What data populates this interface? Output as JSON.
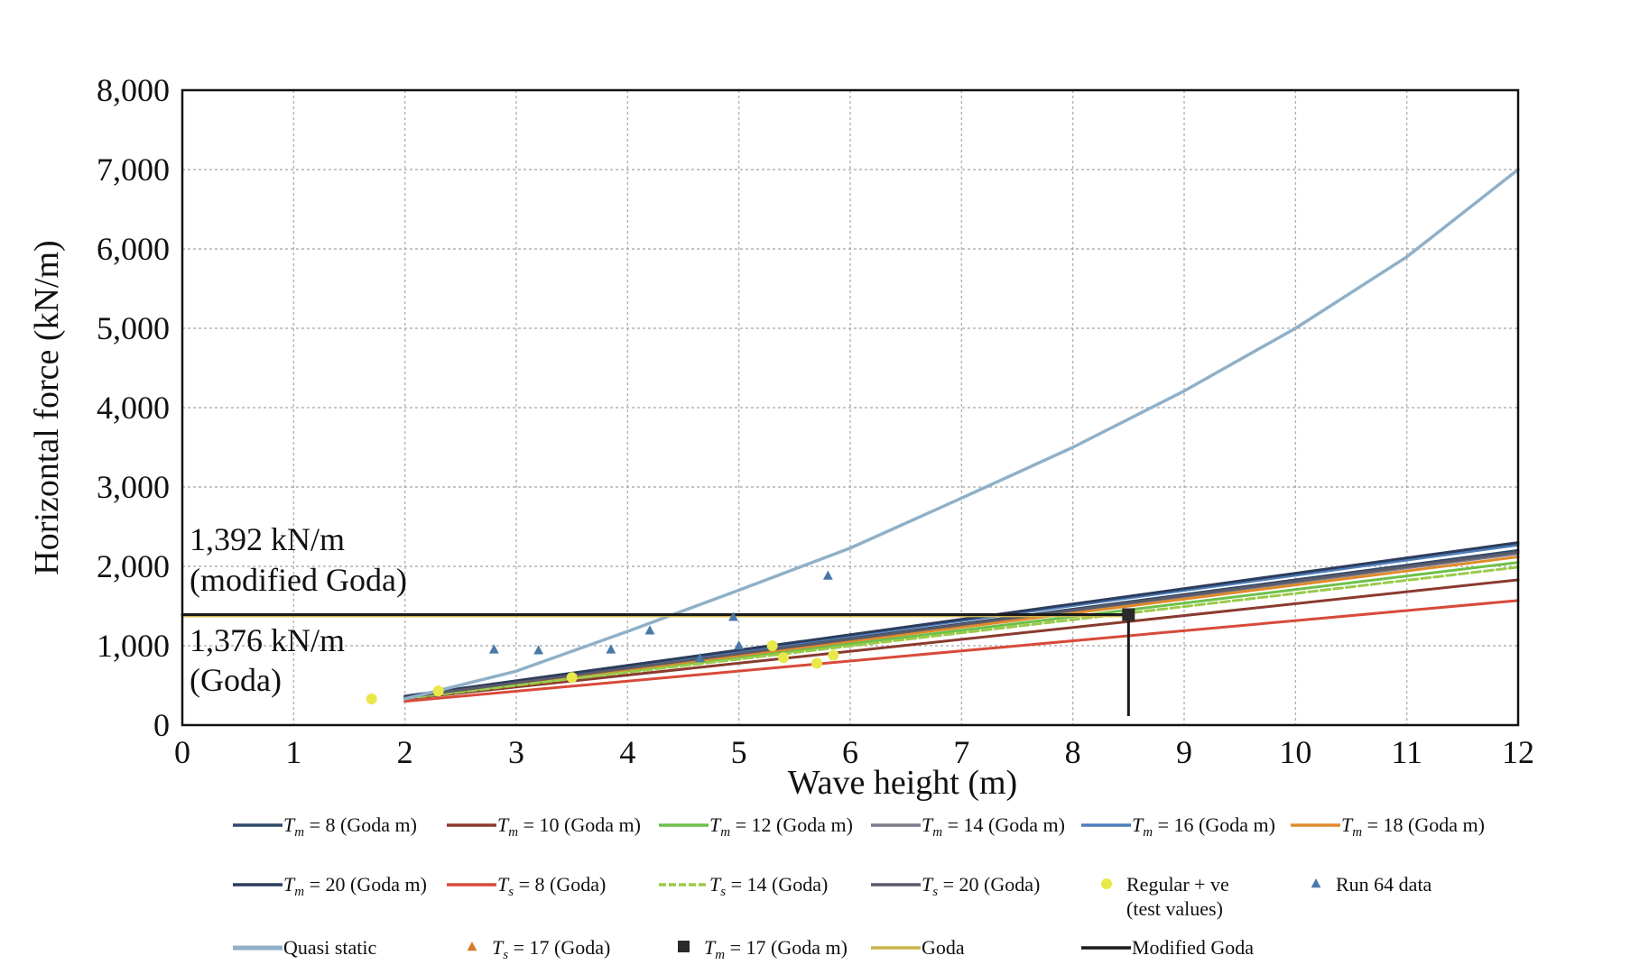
{
  "chart_data": {
    "type": "line",
    "xlabel": "Wave height (m)",
    "ylabel": "Horizontal force (kN/m)",
    "xlim": [
      0,
      12
    ],
    "ylim": [
      0,
      8000
    ],
    "x_ticks": [
      "0",
      "1",
      "2",
      "3",
      "4",
      "5",
      "6",
      "7",
      "8",
      "9",
      "10",
      "11",
      "12"
    ],
    "y_ticks": [
      "0",
      "1,000",
      "2,000",
      "3,000",
      "4,000",
      "5,000",
      "6,000",
      "7,000",
      "8,000"
    ],
    "grid": true,
    "legend_position": "bottom",
    "colors": {
      "tm8": "#2f4868",
      "tm10": "#8a3a2e",
      "tm12": "#6cc04a",
      "tm14": "#7a7a8a",
      "tm16": "#4d7cb8",
      "tm18": "#e08a2a",
      "tm20": "#2c3c5c",
      "ts8": "#d84a3a",
      "ts14": "#9acb4a",
      "ts20": "#5a5a6a",
      "quasi": "#8fb0c8",
      "goda": "#c8b24a",
      "modgoda": "#1a1a1a",
      "regular": "#e8e84a",
      "run64": "#4a78a8",
      "ts17": "#d87a2a",
      "tm17": "#2a2a2a"
    },
    "series": [
      {
        "key": "tm8",
        "name": "T_m = 8 (Goda m)",
        "x": [
          2,
          12
        ],
        "y": [
          350,
          2200
        ]
      },
      {
        "key": "tm10",
        "name": "T_m = 10 (Goda m)",
        "x": [
          2,
          12
        ],
        "y": [
          330,
          1830
        ]
      },
      {
        "key": "tm12",
        "name": "T_m = 12 (Goda m)",
        "x": [
          2,
          12
        ],
        "y": [
          340,
          2050
        ]
      },
      {
        "key": "tm14",
        "name": "T_m = 14 (Goda m)",
        "x": [
          2,
          12
        ],
        "y": [
          355,
          2160
        ]
      },
      {
        "key": "tm16",
        "name": "T_m = 16 (Goda m)",
        "x": [
          2,
          12
        ],
        "y": [
          360,
          2270
        ]
      },
      {
        "key": "tm18",
        "name": "T_m = 18 (Goda m)",
        "x": [
          2,
          12
        ],
        "y": [
          345,
          2120
        ]
      },
      {
        "key": "tm20",
        "name": "T_m = 20 (Goda m)",
        "x": [
          2,
          12
        ],
        "y": [
          365,
          2300
        ]
      },
      {
        "key": "ts8",
        "name": "T_s = 8 (Goda)",
        "x": [
          2,
          12
        ],
        "y": [
          300,
          1570
        ]
      },
      {
        "key": "ts14",
        "name": "T_s = 14 (Goda)",
        "x": [
          2,
          12
        ],
        "y": [
          335,
          1990
        ]
      },
      {
        "key": "ts20",
        "name": "T_s = 20 (Goda)",
        "x": [
          2,
          12
        ],
        "y": [
          350,
          2180
        ]
      },
      {
        "key": "quasi",
        "name": "Quasi static",
        "x": [
          2,
          3,
          4,
          5,
          6,
          7,
          8,
          9,
          10,
          11,
          12
        ],
        "y": [
          330,
          680,
          1180,
          1700,
          2230,
          2860,
          3500,
          4210,
          5000,
          5900,
          7000
        ]
      },
      {
        "key": "goda",
        "name": "Goda",
        "x": [
          0,
          8.5
        ],
        "y": [
          1376,
          1376
        ]
      },
      {
        "key": "modgoda",
        "name": "Modified Goda",
        "x": [
          0,
          8.5
        ],
        "y": [
          1392,
          1392
        ]
      }
    ],
    "scatter": [
      {
        "key": "regular",
        "name": "Regular + ve (test values)",
        "x": [
          1.7,
          2.3,
          3.5,
          5.3,
          5.4,
          5.7,
          5.85
        ],
        "y": [
          330,
          430,
          600,
          1000,
          850,
          780,
          880
        ]
      },
      {
        "key": "run64",
        "name": "Run 64 data",
        "x": [
          2.8,
          3.2,
          3.85,
          4.2,
          4.95,
          5.0,
          4.65,
          5.8
        ],
        "y": [
          950,
          940,
          950,
          1190,
          1360,
          1000,
          840,
          1880
        ]
      },
      {
        "key": "tm17",
        "name": "T_m = 17 (Goda m)",
        "x": [
          8.5
        ],
        "y": [
          1392
        ]
      }
    ],
    "annotations": [
      {
        "key": "modgoda_label",
        "lines": [
          "1,392 kN/m",
          "(modified Goda)"
        ]
      },
      {
        "key": "goda_label",
        "lines": [
          "1,376 kN/m",
          "(Goda)"
        ]
      }
    ],
    "legend": [
      {
        "key": "tm8",
        "style": "line",
        "sym": "T",
        "sub": "m",
        "rest": " = 8 (Goda m)"
      },
      {
        "key": "tm10",
        "style": "line",
        "sym": "T",
        "sub": "m",
        "rest": " = 10 (Goda m)"
      },
      {
        "key": "tm12",
        "style": "line",
        "sym": "T",
        "sub": "m",
        "rest": " = 12 (Goda m)"
      },
      {
        "key": "tm14",
        "style": "line",
        "sym": "T",
        "sub": "m",
        "rest": " = 14 (Goda m)"
      },
      {
        "key": "tm16",
        "style": "line",
        "sym": "T",
        "sub": "m",
        "rest": " = 16 (Goda m)"
      },
      {
        "key": "tm18",
        "style": "line",
        "sym": "T",
        "sub": "m",
        "rest": " = 18 (Goda m)"
      },
      {
        "key": "tm20",
        "style": "line",
        "sym": "T",
        "sub": "m",
        "rest": " = 20 (Goda m)"
      },
      {
        "key": "ts8",
        "style": "line",
        "sym": "T",
        "sub": "s",
        "rest": " = 8 (Goda)"
      },
      {
        "key": "ts14",
        "style": "dash",
        "sym": "T",
        "sub": "s",
        "rest": " = 14 (Goda)"
      },
      {
        "key": "ts20",
        "style": "line",
        "sym": "T",
        "sub": "s",
        "rest": " = 20 (Goda)"
      },
      {
        "key": "regular",
        "style": "dot",
        "plain": "Regular + ve",
        "plain2": "(test values)"
      },
      {
        "key": "run64",
        "style": "triangle",
        "plain": "Run 64 data"
      },
      {
        "key": "quasi",
        "style": "thick",
        "plain": "Quasi static"
      },
      {
        "key": "ts17",
        "style": "triangle",
        "sym": "T",
        "sub": "s",
        "rest": " = 17 (Goda)"
      },
      {
        "key": "tm17",
        "style": "square",
        "sym": "T",
        "sub": "m",
        "rest": " = 17 (Goda m)"
      },
      {
        "key": "goda",
        "style": "line",
        "plain": "Goda"
      },
      {
        "key": "modgoda",
        "style": "line",
        "plain": "Modified Goda"
      }
    ]
  }
}
